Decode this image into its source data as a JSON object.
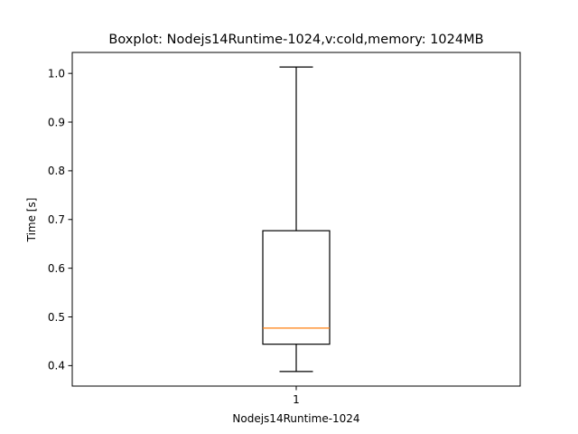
{
  "chart_data": {
    "type": "box",
    "title": "Boxplot: Nodejs14Runtime-1024,v:cold,memory: 1024MB",
    "xlabel": "Nodejs14Runtime-1024",
    "ylabel": "Time [s]",
    "categories": [
      "1"
    ],
    "boxes": [
      {
        "whisker_low": 0.388,
        "q1": 0.444,
        "median": 0.477,
        "q3": 0.677,
        "whisker_high": 1.013
      }
    ],
    "ylim": [
      0.358,
      1.043
    ],
    "yticks": [
      0.4,
      0.5,
      0.6,
      0.7,
      0.8,
      0.9,
      1.0
    ],
    "ytick_labels": [
      "0.4",
      "0.5",
      "0.6",
      "0.7",
      "0.8",
      "0.9",
      "1.0"
    ],
    "xlim": [
      0.5,
      1.5
    ],
    "grid": false,
    "colors": {
      "box": "#000000",
      "whisker": "#000000",
      "median": "#ff7f0e"
    }
  }
}
